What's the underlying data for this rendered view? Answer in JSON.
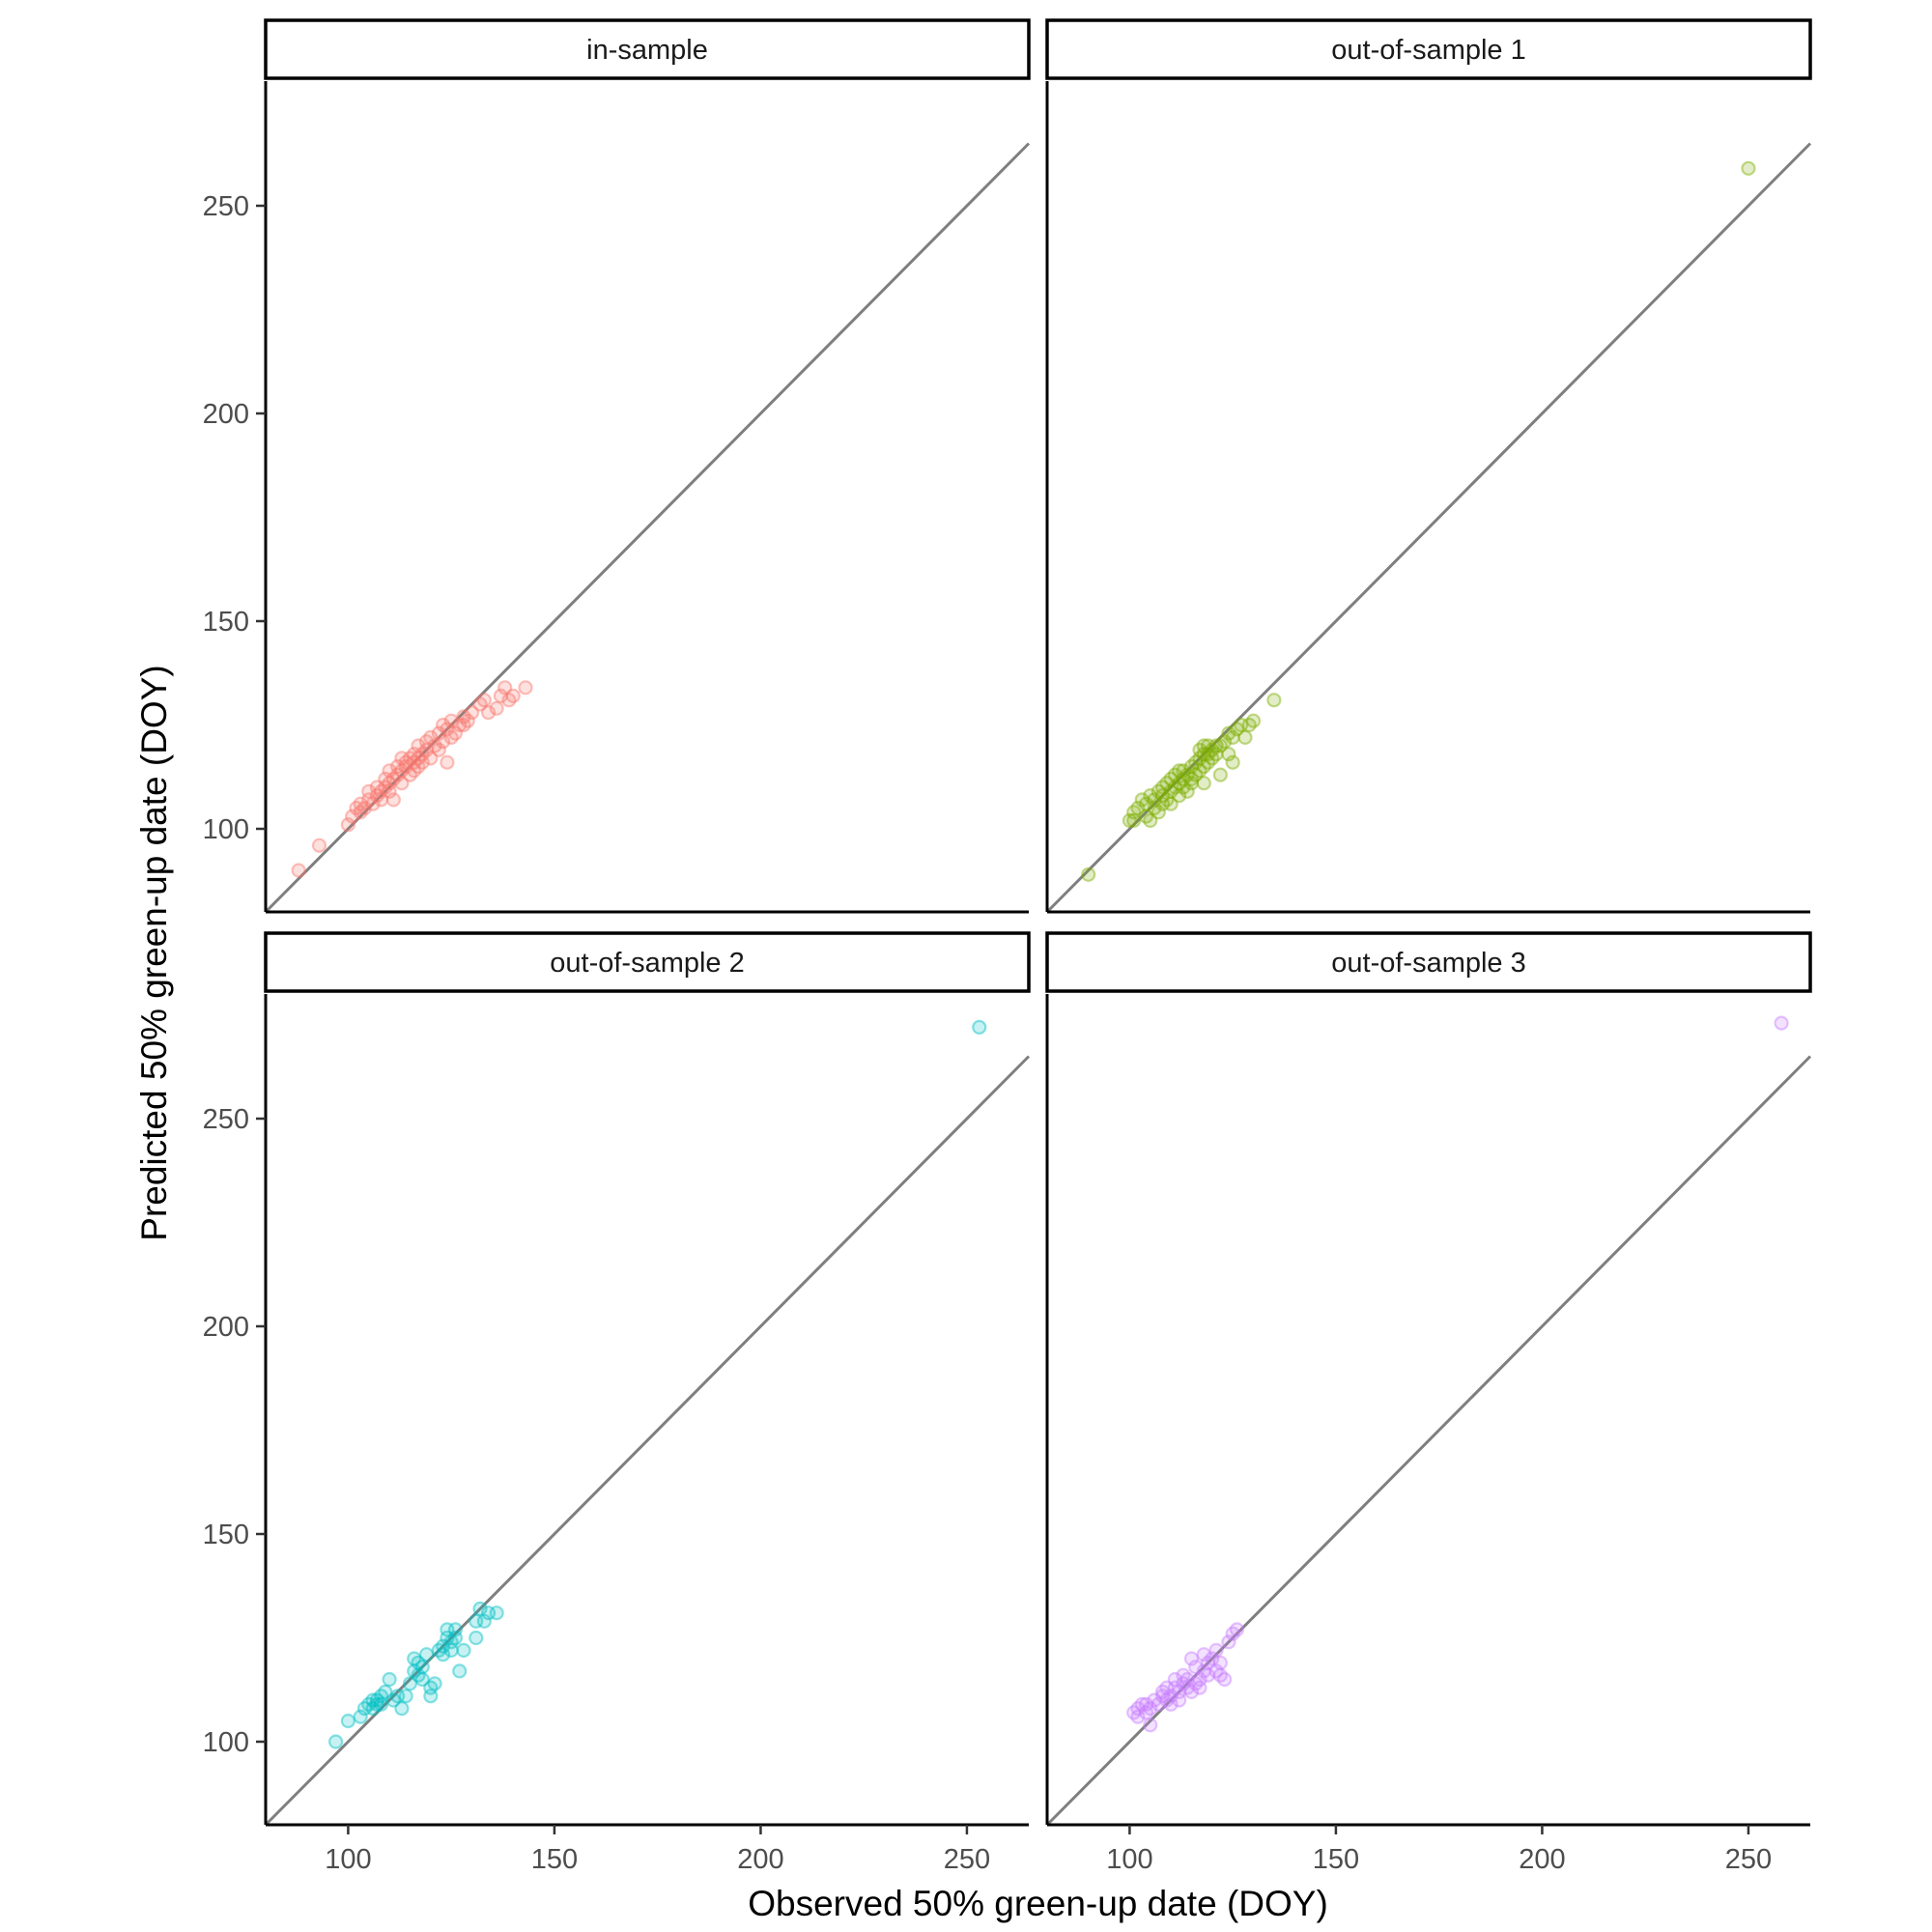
{
  "chart_data": {
    "type": "scatter",
    "title": "",
    "xlabel": "Observed 50% green-up date (DOY)",
    "ylabel": "Predicted 50% green-up date (DOY)",
    "xlim": [
      80,
      265
    ],
    "ylim": [
      80,
      280
    ],
    "x_ticks": [
      "100",
      "150",
      "200",
      "250"
    ],
    "y_ticks": [
      "100",
      "150",
      "200",
      "250"
    ],
    "reference_line": "y = x",
    "point_alpha": 0.3,
    "facets": [
      {
        "label": "in-sample",
        "color": "#F8766D",
        "points": [
          [
            88,
            90
          ],
          [
            93,
            96
          ],
          [
            100,
            101
          ],
          [
            101,
            103
          ],
          [
            102,
            105
          ],
          [
            103,
            104
          ],
          [
            103,
            106
          ],
          [
            104,
            105
          ],
          [
            105,
            107
          ],
          [
            105,
            109
          ],
          [
            106,
            106
          ],
          [
            107,
            108
          ],
          [
            107,
            110
          ],
          [
            108,
            107
          ],
          [
            108,
            109
          ],
          [
            109,
            110
          ],
          [
            109,
            112
          ],
          [
            110,
            109
          ],
          [
            110,
            111
          ],
          [
            110,
            114
          ],
          [
            111,
            107
          ],
          [
            111,
            112
          ],
          [
            112,
            113
          ],
          [
            112,
            115
          ],
          [
            113,
            111
          ],
          [
            113,
            114
          ],
          [
            113,
            117
          ],
          [
            114,
            115
          ],
          [
            114,
            116
          ],
          [
            115,
            113
          ],
          [
            115,
            117
          ],
          [
            116,
            114
          ],
          [
            116,
            116
          ],
          [
            116,
            118
          ],
          [
            117,
            115
          ],
          [
            117,
            117
          ],
          [
            117,
            120
          ],
          [
            118,
            118
          ],
          [
            118,
            116
          ],
          [
            119,
            119
          ],
          [
            119,
            121
          ],
          [
            120,
            117
          ],
          [
            120,
            122
          ],
          [
            121,
            120
          ],
          [
            122,
            119
          ],
          [
            122,
            123
          ],
          [
            123,
            121
          ],
          [
            123,
            125
          ],
          [
            124,
            116
          ],
          [
            124,
            124
          ],
          [
            125,
            126
          ],
          [
            125,
            122
          ],
          [
            126,
            123
          ],
          [
            127,
            125
          ],
          [
            128,
            127
          ],
          [
            128,
            125
          ],
          [
            129,
            126
          ],
          [
            130,
            128
          ],
          [
            132,
            130
          ],
          [
            133,
            131
          ],
          [
            134,
            128
          ],
          [
            136,
            129
          ],
          [
            137,
            132
          ],
          [
            138,
            134
          ],
          [
            139,
            131
          ],
          [
            140,
            132
          ],
          [
            143,
            134
          ]
        ]
      },
      {
        "label": "out-of-sample 1",
        "color": "#7CAE00",
        "points": [
          [
            90,
            89
          ],
          [
            100,
            102
          ],
          [
            101,
            104
          ],
          [
            101,
            102
          ],
          [
            102,
            105
          ],
          [
            103,
            107
          ],
          [
            104,
            103
          ],
          [
            104,
            106
          ],
          [
            105,
            108
          ],
          [
            105,
            102
          ],
          [
            106,
            105
          ],
          [
            106,
            107
          ],
          [
            107,
            104
          ],
          [
            107,
            109
          ],
          [
            108,
            106
          ],
          [
            108,
            108
          ],
          [
            108,
            110
          ],
          [
            109,
            107
          ],
          [
            109,
            111
          ],
          [
            110,
            109
          ],
          [
            110,
            112
          ],
          [
            110,
            106
          ],
          [
            111,
            110
          ],
          [
            111,
            113
          ],
          [
            112,
            108
          ],
          [
            112,
            111
          ],
          [
            112,
            114
          ],
          [
            113,
            110
          ],
          [
            113,
            112
          ],
          [
            113,
            114
          ],
          [
            114,
            109
          ],
          [
            114,
            113
          ],
          [
            115,
            111
          ],
          [
            115,
            112
          ],
          [
            115,
            115
          ],
          [
            116,
            113
          ],
          [
            116,
            116
          ],
          [
            117,
            114
          ],
          [
            117,
            117
          ],
          [
            117,
            119
          ],
          [
            118,
            111
          ],
          [
            118,
            115
          ],
          [
            118,
            118
          ],
          [
            118,
            120
          ],
          [
            119,
            116
          ],
          [
            119,
            118
          ],
          [
            119,
            120
          ],
          [
            120,
            117
          ],
          [
            120,
            119
          ],
          [
            121,
            118
          ],
          [
            121,
            120
          ],
          [
            122,
            113
          ],
          [
            122,
            120
          ],
          [
            123,
            121
          ],
          [
            124,
            118
          ],
          [
            124,
            123
          ],
          [
            125,
            116
          ],
          [
            125,
            122
          ],
          [
            126,
            124
          ],
          [
            127,
            125
          ],
          [
            128,
            122
          ],
          [
            129,
            125
          ],
          [
            130,
            126
          ],
          [
            135,
            131
          ],
          [
            250,
            259
          ]
        ]
      },
      {
        "label": "out-of-sample 2",
        "color": "#00BFC4",
        "points": [
          [
            97,
            100
          ],
          [
            100,
            105
          ],
          [
            103,
            106
          ],
          [
            104,
            108
          ],
          [
            105,
            109
          ],
          [
            106,
            110
          ],
          [
            106,
            108
          ],
          [
            107,
            109
          ],
          [
            107,
            110
          ],
          [
            108,
            111
          ],
          [
            108,
            109
          ],
          [
            109,
            112
          ],
          [
            110,
            115
          ],
          [
            111,
            110
          ],
          [
            112,
            111
          ],
          [
            113,
            108
          ],
          [
            114,
            111
          ],
          [
            115,
            114
          ],
          [
            116,
            117
          ],
          [
            116,
            120
          ],
          [
            117,
            119
          ],
          [
            117,
            116
          ],
          [
            118,
            118
          ],
          [
            118,
            115
          ],
          [
            119,
            121
          ],
          [
            120,
            113
          ],
          [
            120,
            111
          ],
          [
            121,
            114
          ],
          [
            122,
            122
          ],
          [
            123,
            123
          ],
          [
            123,
            121
          ],
          [
            124,
            127
          ],
          [
            124,
            125
          ],
          [
            125,
            124
          ],
          [
            125,
            122
          ],
          [
            126,
            127
          ],
          [
            126,
            125
          ],
          [
            127,
            117
          ],
          [
            128,
            122
          ],
          [
            131,
            129
          ],
          [
            131,
            125
          ],
          [
            132,
            132
          ],
          [
            133,
            129
          ],
          [
            134,
            131
          ],
          [
            136,
            131
          ],
          [
            253,
            272
          ]
        ]
      },
      {
        "label": "out-of-sample 3",
        "color": "#C77CFF",
        "points": [
          [
            101,
            107
          ],
          [
            102,
            108
          ],
          [
            102,
            106
          ],
          [
            103,
            109
          ],
          [
            104,
            107
          ],
          [
            104,
            109
          ],
          [
            105,
            104
          ],
          [
            105,
            108
          ],
          [
            106,
            110
          ],
          [
            107,
            109
          ],
          [
            108,
            111
          ],
          [
            108,
            112
          ],
          [
            109,
            110
          ],
          [
            109,
            113
          ],
          [
            110,
            111
          ],
          [
            110,
            109
          ],
          [
            111,
            113
          ],
          [
            111,
            115
          ],
          [
            112,
            112
          ],
          [
            112,
            110
          ],
          [
            113,
            114
          ],
          [
            113,
            116
          ],
          [
            114,
            115
          ],
          [
            114,
            113
          ],
          [
            115,
            112
          ],
          [
            115,
            120
          ],
          [
            116,
            114
          ],
          [
            116,
            118
          ],
          [
            117,
            113
          ],
          [
            117,
            115
          ],
          [
            118,
            117
          ],
          [
            118,
            121
          ],
          [
            119,
            116
          ],
          [
            119,
            119
          ],
          [
            120,
            120
          ],
          [
            121,
            117
          ],
          [
            121,
            122
          ],
          [
            122,
            116
          ],
          [
            122,
            119
          ],
          [
            123,
            115
          ],
          [
            124,
            124
          ],
          [
            125,
            126
          ],
          [
            126,
            127
          ],
          [
            258,
            273
          ]
        ]
      }
    ]
  }
}
